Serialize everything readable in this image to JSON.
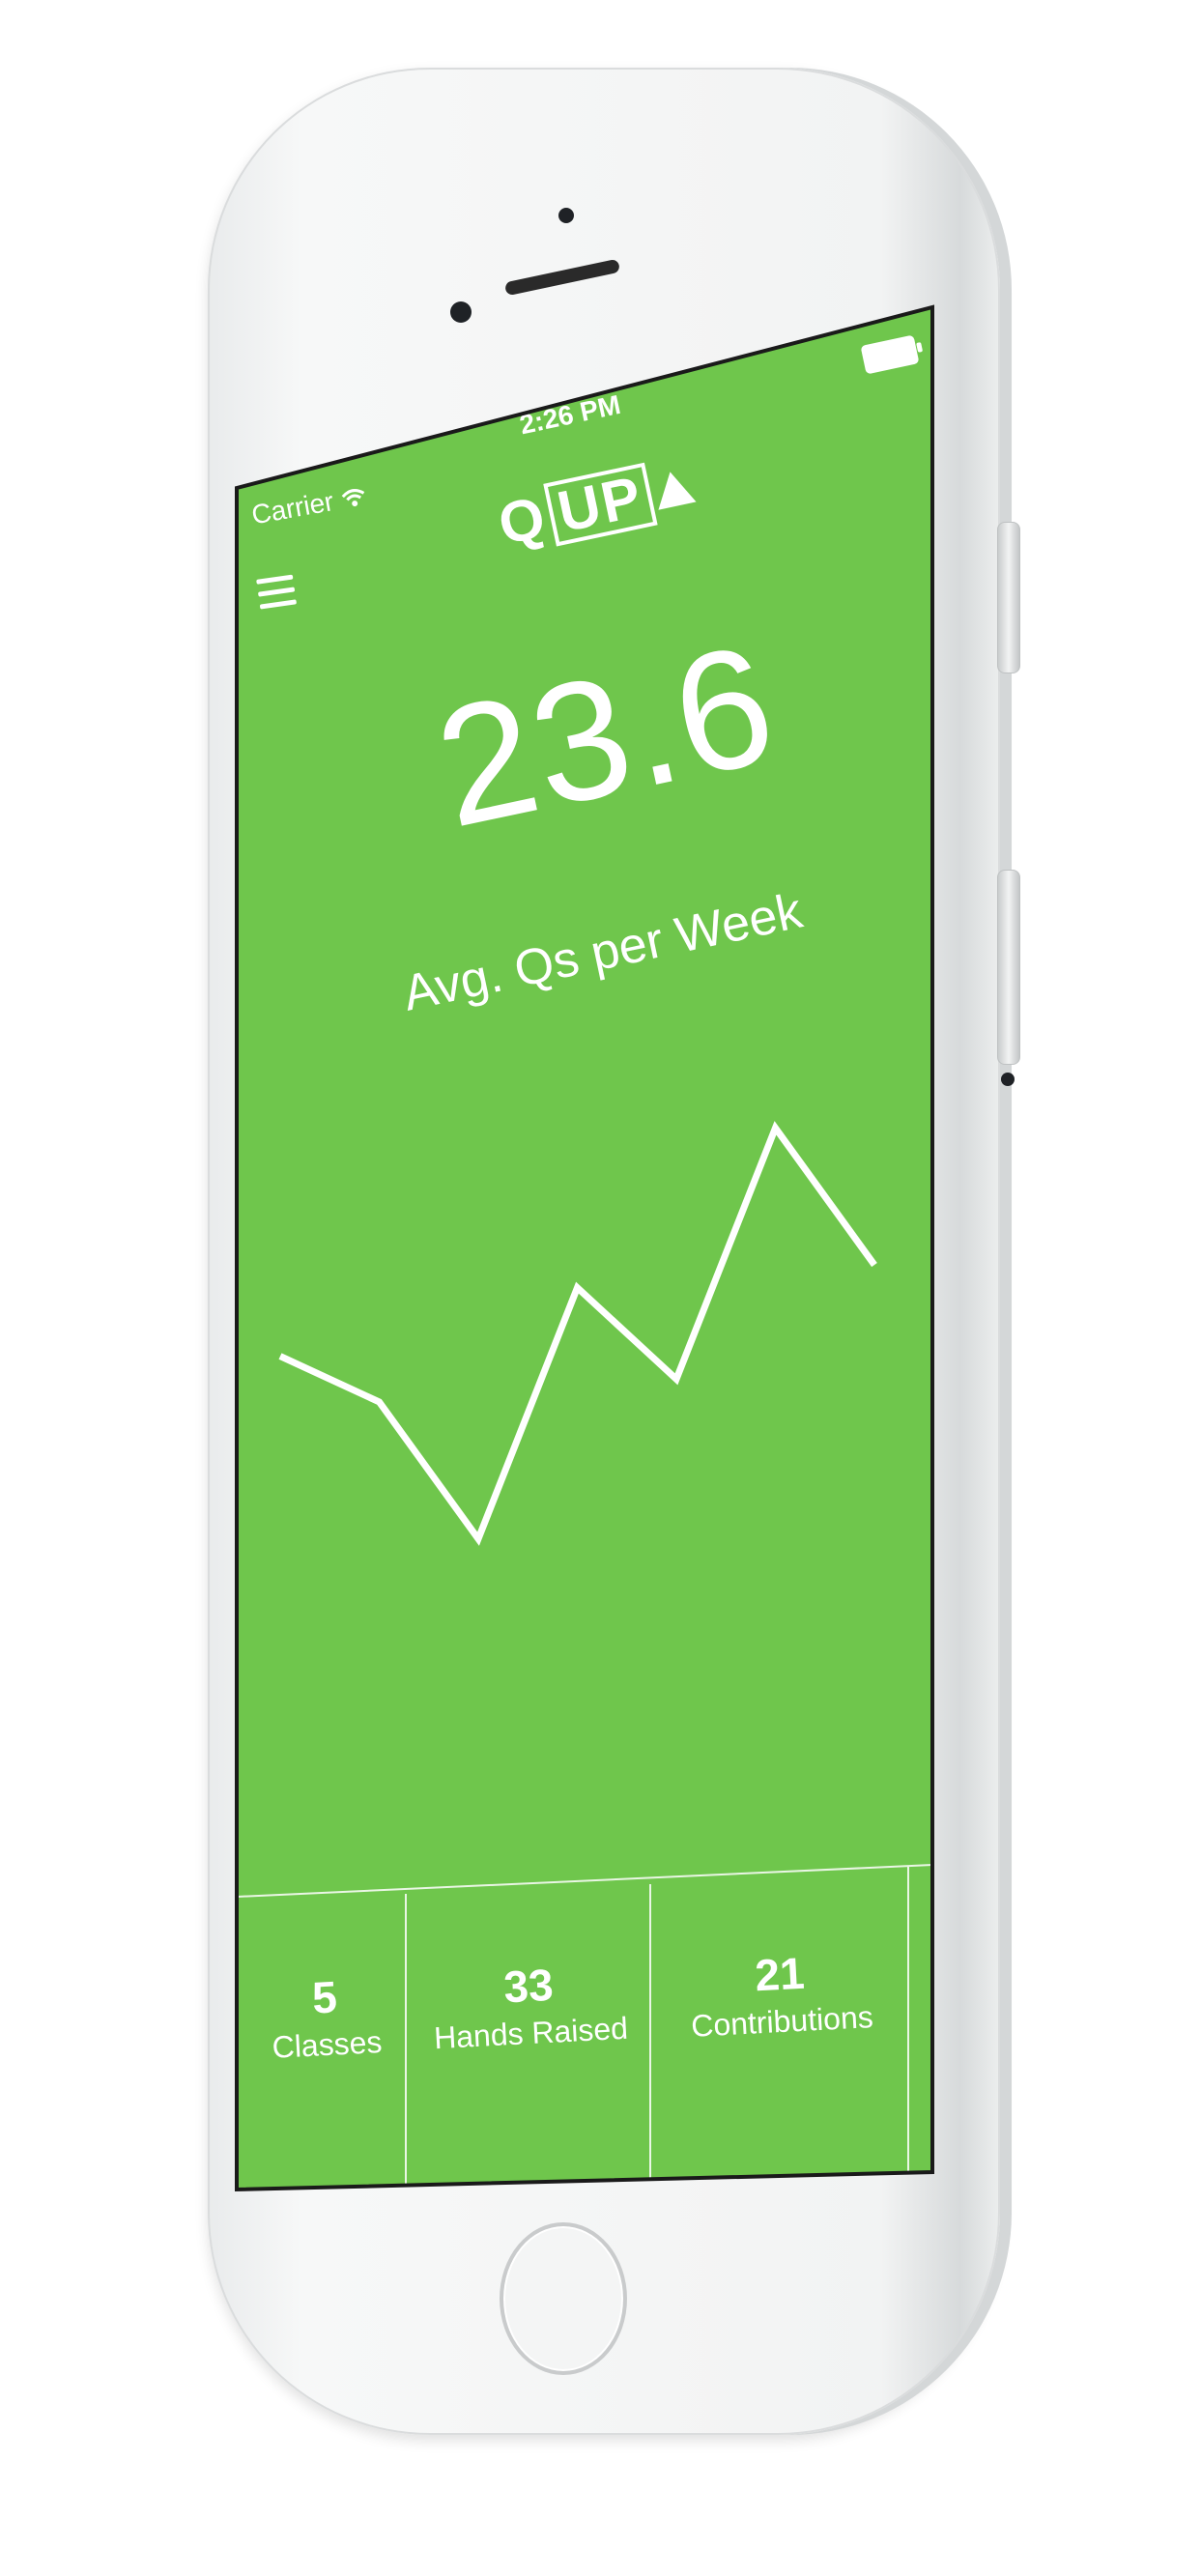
{
  "status_bar": {
    "carrier": "Carrier",
    "time": "2:26 PM",
    "wifi_icon": "wifi-icon",
    "battery_icon": "battery-icon"
  },
  "header": {
    "logo_q": "Q",
    "logo_up": "UP",
    "menu_icon": "hamburger-menu-icon"
  },
  "metric": {
    "value": "23.6",
    "label": "Avg. Qs per Week"
  },
  "chart_data": {
    "type": "line",
    "x": [
      1,
      2,
      3,
      4,
      5,
      6,
      7
    ],
    "values": [
      20,
      18,
      12,
      23,
      19,
      30,
      24
    ],
    "title": "",
    "xlabel": "",
    "ylabel": "",
    "grid": false,
    "color": "#ffffff"
  },
  "stats": [
    {
      "value": "5",
      "label": "Classes"
    },
    {
      "value": "33",
      "label": "Hands Raised"
    },
    {
      "value": "21",
      "label": "Contributions"
    }
  ],
  "colors": {
    "screen_bg": "#6fc64c",
    "foreground": "#ffffff",
    "phone_body": "#f2f3f3"
  }
}
